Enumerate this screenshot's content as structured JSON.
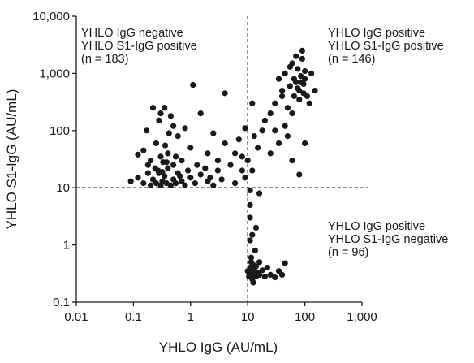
{
  "chart_data": {
    "type": "scatter",
    "xlabel": "YHLO IgG (AU/mL)",
    "ylabel": "YHLO S1-IgG (AU/mL)",
    "log_x": true,
    "log_y": true,
    "color": "#1a1a1a",
    "xlim": [
      0.01,
      1000
    ],
    "ylim": [
      0.1,
      10000
    ],
    "xticks": [
      0.01,
      0.1,
      1,
      10,
      100,
      {
        "value": 1000,
        "label": "1,000"
      }
    ],
    "yticks": [
      0.1,
      1,
      10,
      100,
      {
        "value": 1000,
        "label": "1,000"
      },
      {
        "value": 10000,
        "label": "10,000"
      }
    ],
    "hlines": [
      10
    ],
    "vlines": [
      10
    ],
    "annotations": [
      {
        "lines": [
          "YHLO IgG negative",
          "YHLO S1-IgG positive",
          "(n = 183)"
        ]
      },
      {
        "lines": [
          "YHLO IgG positive",
          "YHLO S1-IgG positive",
          "(n = 146)"
        ]
      },
      {
        "lines": [
          "YHLO IgG positive",
          "YHLO S1-IgG negative",
          "(n = 96)"
        ]
      }
    ],
    "x": [
      0.09,
      0.12,
      0.15,
      0.18,
      0.2,
      0.22,
      0.25,
      0.27,
      0.3,
      0.32,
      0.35,
      0.38,
      0.4,
      0.45,
      0.5,
      0.55,
      0.6,
      0.7,
      0.8,
      1,
      1.2,
      1.5,
      2,
      2.5,
      3,
      0.15,
      0.2,
      0.25,
      0.3,
      0.3,
      0.35,
      0.4,
      0.45,
      0.5,
      0.22,
      0.28,
      0.6,
      0.7,
      0.8,
      1,
      1.1,
      1.3,
      1.5,
      2,
      2.5,
      3,
      4,
      4,
      5,
      6,
      7,
      8,
      9,
      0.18,
      0.33,
      0.36,
      0.42,
      0.28,
      0.24,
      0.32,
      0.38,
      0.55,
      1.8,
      2.2,
      3.5,
      0.65,
      0.9,
      0.12,
      0.17,
      0.5,
      6,
      8,
      9,
      11,
      11,
      11,
      12,
      12,
      14,
      15,
      10,
      13,
      12,
      18,
      16,
      10,
      10.5,
      11,
      11,
      11.5,
      12,
      12,
      12.5,
      13,
      13,
      14,
      14,
      15,
      16,
      16,
      18,
      20,
      22,
      25,
      30,
      35,
      40,
      45,
      11.5,
      12.5,
      13.5,
      11,
      20,
      25,
      30,
      35,
      40,
      45,
      50,
      55,
      60,
      65,
      70,
      75,
      80,
      85,
      90,
      95,
      100,
      110,
      120,
      130,
      150,
      70,
      80,
      90,
      60,
      45,
      35,
      30,
      25,
      50,
      80,
      100,
      60,
      40,
      55,
      65,
      75,
      85,
      95,
      100
    ],
    "values": [
      13,
      15,
      12,
      18,
      11,
      14,
      12,
      20,
      11,
      13,
      16,
      12,
      22,
      11,
      14,
      12,
      18,
      13,
      11,
      15,
      12,
      17,
      13,
      11,
      20,
      45,
      30,
      60,
      35,
      200,
      250,
      40,
      180,
      25,
      250,
      150,
      80,
      30,
      110,
      50,
      630,
      25,
      200,
      40,
      90,
      30,
      60,
      450,
      25,
      40,
      70,
      20,
      110,
      25,
      28,
      55,
      90,
      18,
      22,
      19,
      28,
      35,
      22,
      15,
      14,
      16,
      20,
      38,
      100,
      120,
      12,
      35,
      15,
      3,
      5,
      9,
      1.5,
      20,
      2,
      50,
      30,
      80,
      300,
      100,
      8,
      0.35,
      0.28,
      0.4,
      0.3,
      0.5,
      0.33,
      0.25,
      0.45,
      0.3,
      0.38,
      0.28,
      0.42,
      0.33,
      0.3,
      0.5,
      0.36,
      0.28,
      0.4,
      0.3,
      0.27,
      0.35,
      0.3,
      0.48,
      0.6,
      0.22,
      0.8,
      1.2,
      150,
      200,
      300,
      800,
      400,
      1000,
      250,
      600,
      1500,
      400,
      700,
      1200,
      500,
      900,
      2500,
      650,
      800,
      400,
      300,
      1000,
      500,
      2000,
      350,
      1800,
      200,
      120,
      60,
      100,
      40,
      80,
      17,
      60,
      30,
      500,
      1300,
      800,
      550,
      700,
      450,
      1100
    ]
  }
}
